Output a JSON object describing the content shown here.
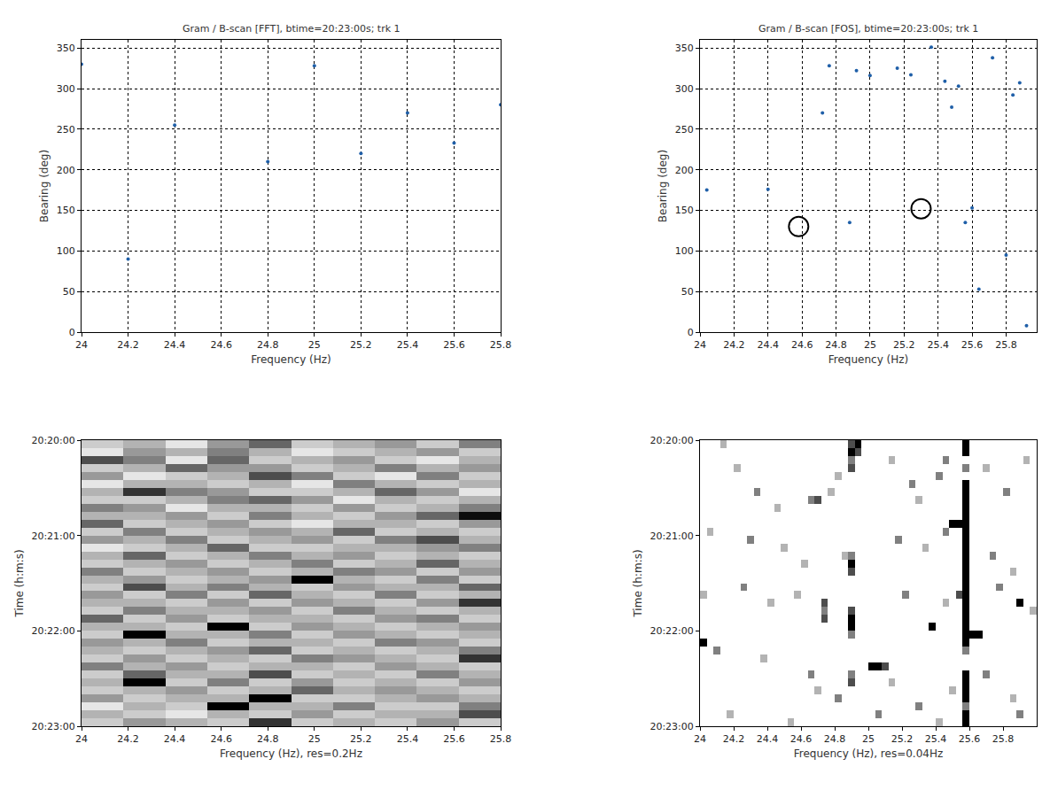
{
  "chart_data": [
    {
      "type": "scatter",
      "title": "Gram / B-scan [FFT], btime=20:23:00s; trk 1",
      "x_label": "Frequency (Hz)",
      "y_label": "Bearing (deg)",
      "xlim": [
        24,
        25.8
      ],
      "ylim": [
        0,
        360
      ],
      "xticks": [
        24,
        24.2,
        24.4,
        24.6,
        24.8,
        25,
        25.2,
        25.4,
        25.6,
        25.8
      ],
      "yticks": [
        0,
        50,
        100,
        150,
        200,
        250,
        300,
        350
      ],
      "grid": true,
      "series": [
        {
          "color": "#1f5fa8",
          "marker": "dot",
          "x": [
            24,
            24.2,
            24.4,
            24.8,
            25,
            25.2,
            25.4,
            25.6,
            25.8
          ],
          "values": [
            330,
            90,
            255,
            210,
            328,
            220,
            270,
            233,
            280
          ]
        }
      ]
    },
    {
      "type": "scatter",
      "title": "Gram / B-scan [FOS], btime=20:23:00s; trk 1",
      "x_label": "Frequency (Hz)",
      "y_label": "Bearing (deg)",
      "xlim": [
        24,
        25.98
      ],
      "ylim": [
        0,
        360
      ],
      "xticks": [
        24,
        24.2,
        24.4,
        24.6,
        24.8,
        25,
        25.2,
        25.4,
        25.6,
        25.8
      ],
      "yticks": [
        0,
        50,
        100,
        150,
        200,
        250,
        300,
        350
      ],
      "grid": true,
      "series": [
        {
          "color": "#1f5fa8",
          "marker": "dot",
          "x": [
            24.04,
            24.4,
            24.72,
            24.76,
            24.88,
            24.92,
            25,
            25.16,
            25.24,
            25.36,
            25.44,
            25.48,
            25.52,
            25.56,
            25.6,
            25.64,
            25.72,
            25.8,
            25.84,
            25.88,
            25.92
          ],
          "values": [
            175,
            176,
            270,
            328,
            135,
            322,
            316,
            325,
            317,
            351,
            309,
            277,
            303,
            135,
            153,
            53,
            338,
            95,
            292,
            307,
            8
          ]
        },
        {
          "color": "#000000",
          "marker": "circle-open",
          "x": [
            24.58,
            25.3
          ],
          "values": [
            130,
            152
          ]
        }
      ]
    },
    {
      "type": "heatmap",
      "x_label": "Frequency (Hz), res=0.2Hz",
      "y_label": "Time (h:m:s)",
      "xlim": [
        24,
        25.8
      ],
      "ylim": [
        180,
        0
      ],
      "xticks": [
        24,
        24.2,
        24.4,
        24.6,
        24.8,
        25,
        25.2,
        25.4,
        25.6,
        25.8
      ],
      "yticks": [
        {
          "value": 0,
          "label": "20:20:00"
        },
        {
          "value": 60,
          "label": "20:21:00"
        },
        {
          "value": 120,
          "label": "20:22:00"
        },
        {
          "value": 180,
          "label": "20:23:00"
        }
      ],
      "grid": false,
      "zlim": [
        0,
        1
      ],
      "x": [
        24.09,
        24.27,
        24.45,
        24.63,
        24.81,
        24.99,
        25.17,
        25.35,
        25.53,
        25.71
      ],
      "y": [
        2.5,
        7.5,
        12.5,
        17.5,
        22.5,
        27.5,
        32.5,
        37.5,
        42.5,
        47.5,
        52.5,
        57.5,
        62.5,
        67.5,
        72.5,
        77.5,
        82.5,
        87.5,
        92.5,
        97.5,
        102.5,
        107.5,
        112.5,
        117.5,
        122.5,
        127.5,
        132.5,
        137.5,
        142.5,
        147.5,
        152.5,
        157.5,
        162.5,
        167.5,
        172.5,
        177.5
      ],
      "z": [
        [
          0.2,
          0.3,
          0.1,
          0.4,
          0.6,
          0.2,
          0.3,
          0.4,
          0.2,
          0.5
        ],
        [
          0.1,
          0.4,
          0.3,
          0.5,
          0.3,
          0.1,
          0.2,
          0.3,
          0.4,
          0.2
        ],
        [
          0.7,
          0.5,
          0.1,
          0.6,
          0.2,
          0.3,
          0.4,
          0.2,
          0.1,
          0.3
        ],
        [
          0.2,
          0.3,
          0.6,
          0.4,
          0.4,
          0.2,
          0.3,
          0.5,
          0.3,
          0.4
        ],
        [
          0.4,
          0.1,
          0.2,
          0.3,
          0.7,
          0.5,
          0.2,
          0.1,
          0.5,
          0.2
        ],
        [
          0.1,
          0.3,
          0.3,
          0.2,
          0.3,
          0.1,
          0.5,
          0.3,
          0.2,
          0.3
        ],
        [
          0.3,
          0.8,
          0.5,
          0.4,
          0.2,
          0.2,
          0.3,
          0.6,
          0.4,
          0.1
        ],
        [
          0.2,
          0.2,
          0.3,
          0.5,
          0.6,
          0.4,
          0.1,
          0.3,
          0.2,
          0.3
        ],
        [
          0.5,
          0.4,
          0.1,
          0.3,
          0.3,
          0.2,
          0.4,
          0.2,
          0.3,
          0.5
        ],
        [
          0.3,
          0.3,
          0.4,
          0.2,
          0.5,
          0.3,
          0.2,
          0.4,
          0.6,
          0.95
        ],
        [
          0.6,
          0.2,
          0.3,
          0.4,
          0.2,
          0.1,
          0.3,
          0.3,
          0.2,
          0.4
        ],
        [
          0.2,
          0.5,
          0.2,
          0.3,
          0.4,
          0.3,
          0.6,
          0.2,
          0.3,
          0.2
        ],
        [
          0.4,
          0.3,
          0.5,
          0.2,
          0.3,
          0.4,
          0.2,
          0.5,
          0.7,
          0.3
        ],
        [
          0.1,
          0.2,
          0.3,
          0.6,
          0.2,
          0.2,
          0.3,
          0.3,
          0.4,
          0.5
        ],
        [
          0.3,
          0.6,
          0.2,
          0.3,
          0.5,
          0.3,
          0.4,
          0.2,
          0.3,
          0.2
        ],
        [
          0.2,
          0.3,
          0.4,
          0.2,
          0.3,
          0.5,
          0.2,
          0.3,
          0.6,
          0.3
        ],
        [
          0.5,
          0.2,
          0.3,
          0.4,
          0.2,
          0.3,
          0.5,
          0.4,
          0.2,
          0.4
        ],
        [
          0.3,
          0.4,
          0.2,
          0.3,
          0.4,
          1.0,
          0.3,
          0.2,
          0.5,
          0.2
        ],
        [
          0.2,
          0.7,
          0.3,
          0.5,
          0.3,
          0.2,
          0.4,
          0.3,
          0.3,
          0.6
        ],
        [
          0.4,
          0.2,
          0.5,
          0.2,
          0.6,
          0.3,
          0.2,
          0.5,
          0.2,
          0.3
        ],
        [
          0.3,
          0.3,
          0.2,
          0.4,
          0.2,
          0.4,
          0.3,
          0.2,
          0.4,
          0.8
        ],
        [
          0.2,
          0.5,
          0.3,
          0.3,
          0.4,
          0.2,
          0.5,
          0.3,
          0.2,
          0.3
        ],
        [
          0.6,
          0.2,
          0.4,
          0.2,
          0.3,
          0.3,
          0.2,
          0.4,
          0.5,
          0.2
        ],
        [
          0.3,
          0.3,
          0.2,
          1.0,
          0.2,
          0.4,
          0.3,
          0.2,
          0.3,
          0.4
        ],
        [
          0.2,
          1.0,
          0.3,
          0.3,
          0.5,
          0.2,
          0.4,
          0.3,
          0.2,
          0.3
        ],
        [
          0.4,
          0.3,
          0.5,
          0.2,
          0.3,
          0.3,
          0.2,
          0.5,
          0.4,
          0.2
        ],
        [
          0.3,
          0.2,
          0.3,
          0.4,
          0.6,
          0.2,
          0.3,
          0.2,
          0.3,
          0.5
        ],
        [
          0.2,
          0.4,
          0.2,
          0.3,
          0.2,
          0.5,
          0.4,
          0.3,
          0.2,
          0.8
        ],
        [
          0.5,
          0.3,
          0.4,
          0.2,
          0.3,
          0.3,
          0.2,
          0.4,
          0.3,
          0.2
        ],
        [
          0.2,
          0.6,
          0.3,
          0.3,
          0.7,
          0.2,
          0.3,
          0.2,
          0.5,
          0.3
        ],
        [
          0.3,
          1.0,
          0.2,
          0.5,
          0.2,
          0.4,
          0.2,
          0.3,
          0.2,
          0.4
        ],
        [
          0.2,
          0.3,
          0.4,
          0.2,
          0.3,
          0.6,
          0.3,
          0.4,
          0.3,
          0.2
        ],
        [
          0.4,
          0.2,
          0.3,
          0.3,
          1.0,
          0.2,
          0.2,
          0.3,
          0.4,
          0.3
        ],
        [
          0.1,
          0.3,
          0.2,
          1.0,
          0.3,
          0.3,
          0.5,
          0.2,
          0.2,
          0.5
        ],
        [
          0.3,
          0.2,
          0.1,
          0.3,
          0.2,
          0.4,
          0.2,
          0.3,
          0.3,
          0.7
        ],
        [
          0.2,
          0.4,
          0.3,
          0.2,
          0.8,
          0.2,
          0.3,
          0.2,
          0.4,
          0.2
        ]
      ]
    },
    {
      "type": "heatmap",
      "x_label": "Frequency (Hz), res=0.04Hz",
      "y_label": "Time (h:m:s)",
      "xlim": [
        24,
        26
      ],
      "ylim": [
        180,
        0
      ],
      "xticks": [
        24,
        24.2,
        24.4,
        24.6,
        24.8,
        25,
        25.2,
        25.4,
        25.6,
        25.8
      ],
      "yticks": [
        {
          "value": 0,
          "label": "20:20:00"
        },
        {
          "value": 60,
          "label": "20:21:00"
        },
        {
          "value": 120,
          "label": "20:22:00"
        },
        {
          "value": 180,
          "label": "20:23:00"
        }
      ],
      "grid": false,
      "zlim": [
        0,
        1
      ],
      "x": [
        24.02,
        24.06,
        24.1,
        24.14,
        24.18,
        24.22,
        24.26,
        24.3,
        24.34,
        24.38,
        24.42,
        24.46,
        24.5,
        24.54,
        24.58,
        24.62,
        24.66,
        24.7,
        24.74,
        24.78,
        24.82,
        24.86,
        24.9,
        24.94,
        24.98,
        25.02,
        25.06,
        25.1,
        25.14,
        25.18,
        25.22,
        25.26,
        25.3,
        25.34,
        25.38,
        25.42,
        25.46,
        25.5,
        25.54,
        25.58,
        25.62,
        25.66,
        25.7,
        25.74,
        25.78,
        25.82,
        25.86,
        25.9,
        25.94,
        25.98
      ],
      "y": [
        2.5,
        7.5,
        12.5,
        17.5,
        22.5,
        27.5,
        32.5,
        37.5,
        42.5,
        47.5,
        52.5,
        57.5,
        62.5,
        67.5,
        72.5,
        77.5,
        82.5,
        87.5,
        92.5,
        97.5,
        102.5,
        107.5,
        112.5,
        117.5,
        122.5,
        127.5,
        132.5,
        137.5,
        142.5,
        147.5,
        152.5,
        157.5,
        162.5,
        167.5,
        172.5,
        177.5
      ],
      "cells": [
        [
          25.58,
          2.5,
          1
        ],
        [
          25.58,
          7.5,
          1
        ],
        [
          25.58,
          17.5,
          0.5
        ],
        [
          25.58,
          27.5,
          1
        ],
        [
          25.58,
          32.5,
          1
        ],
        [
          25.58,
          37.5,
          1
        ],
        [
          25.58,
          42.5,
          1
        ],
        [
          25.58,
          47.5,
          1
        ],
        [
          25.58,
          52.5,
          1
        ],
        [
          25.58,
          57.5,
          1
        ],
        [
          25.58,
          62.5,
          1
        ],
        [
          25.58,
          67.5,
          1
        ],
        [
          25.58,
          72.5,
          1
        ],
        [
          25.58,
          77.5,
          1
        ],
        [
          25.58,
          82.5,
          1
        ],
        [
          25.58,
          87.5,
          1
        ],
        [
          25.58,
          92.5,
          1
        ],
        [
          25.58,
          97.5,
          1
        ],
        [
          25.58,
          102.5,
          1
        ],
        [
          25.58,
          107.5,
          1
        ],
        [
          25.58,
          112.5,
          1
        ],
        [
          25.58,
          117.5,
          1
        ],
        [
          25.58,
          122.5,
          1
        ],
        [
          25.58,
          127.5,
          1
        ],
        [
          25.58,
          132.5,
          0.5
        ],
        [
          25.58,
          147.5,
          1
        ],
        [
          25.58,
          152.5,
          1
        ],
        [
          25.58,
          157.5,
          1
        ],
        [
          25.58,
          162.5,
          1
        ],
        [
          25.58,
          167.5,
          0.5
        ],
        [
          25.58,
          172.5,
          1
        ],
        [
          25.58,
          177.5,
          1
        ],
        [
          25.54,
          52.5,
          1
        ],
        [
          25.5,
          52.5,
          1
        ],
        [
          25.46,
          57.5,
          0.5
        ],
        [
          25.62,
          122.5,
          1
        ],
        [
          25.66,
          122.5,
          1
        ],
        [
          25.54,
          97.5,
          0.7
        ],
        [
          25.46,
          12.5,
          0.5
        ],
        [
          24.9,
          2.5,
          0.7
        ],
        [
          24.9,
          7.5,
          1
        ],
        [
          24.9,
          12.5,
          0.5
        ],
        [
          24.9,
          17.5,
          0.7
        ],
        [
          24.9,
          72.5,
          0.5
        ],
        [
          24.9,
          77.5,
          1
        ],
        [
          24.9,
          82.5,
          0.7
        ],
        [
          24.9,
          107.5,
          0.7
        ],
        [
          24.9,
          112.5,
          1
        ],
        [
          24.9,
          117.5,
          1
        ],
        [
          24.9,
          122.5,
          0.5
        ],
        [
          24.9,
          147.5,
          0.5
        ],
        [
          24.9,
          152.5,
          0.7
        ],
        [
          24.94,
          2.5,
          1
        ],
        [
          24.94,
          7.5,
          0.7
        ],
        [
          24.74,
          102.5,
          0.7
        ],
        [
          24.74,
          107.5,
          0.5
        ],
        [
          24.74,
          112.5,
          0.7
        ],
        [
          25.02,
          142.5,
          1
        ],
        [
          25.06,
          142.5,
          1
        ],
        [
          25.1,
          142.5,
          0.7
        ],
        [
          25.38,
          117.5,
          1
        ],
        [
          25.9,
          102.5,
          1
        ],
        [
          24.02,
          127.5,
          1
        ],
        [
          24.14,
          2.5,
          0.3
        ],
        [
          24.22,
          17.5,
          0.3
        ],
        [
          24.34,
          32.5,
          0.5
        ],
        [
          24.46,
          42.5,
          0.3
        ],
        [
          24.66,
          37.5,
          0.5
        ],
        [
          24.7,
          37.5,
          0.7
        ],
        [
          24.78,
          32.5,
          0.3
        ],
        [
          24.82,
          22.5,
          0.3
        ],
        [
          25.14,
          12.5,
          0.3
        ],
        [
          25.26,
          27.5,
          0.5
        ],
        [
          25.3,
          37.5,
          0.3
        ],
        [
          25.42,
          22.5,
          0.5
        ],
        [
          25.7,
          17.5,
          0.3
        ],
        [
          25.82,
          32.5,
          0.5
        ],
        [
          25.94,
          12.5,
          0.3
        ],
        [
          24.06,
          57.5,
          0.3
        ],
        [
          24.3,
          62.5,
          0.5
        ],
        [
          24.5,
          67.5,
          0.3
        ],
        [
          24.62,
          77.5,
          0.3
        ],
        [
          24.86,
          72.5,
          0.3
        ],
        [
          25.18,
          62.5,
          0.5
        ],
        [
          25.34,
          67.5,
          0.3
        ],
        [
          25.74,
          72.5,
          0.5
        ],
        [
          25.86,
          82.5,
          0.3
        ],
        [
          24.02,
          97.5,
          0.3
        ],
        [
          24.26,
          92.5,
          0.5
        ],
        [
          24.42,
          102.5,
          0.3
        ],
        [
          24.58,
          97.5,
          0.3
        ],
        [
          25.22,
          97.5,
          0.5
        ],
        [
          25.46,
          102.5,
          0.3
        ],
        [
          25.78,
          92.5,
          0.5
        ],
        [
          25.98,
          107.5,
          0.3
        ],
        [
          24.1,
          132.5,
          0.5
        ],
        [
          24.38,
          137.5,
          0.3
        ],
        [
          24.66,
          147.5,
          0.5
        ],
        [
          24.7,
          157.5,
          0.3
        ],
        [
          24.82,
          162.5,
          0.5
        ],
        [
          25.14,
          152.5,
          0.3
        ],
        [
          25.3,
          167.5,
          0.5
        ],
        [
          25.5,
          157.5,
          0.3
        ],
        [
          25.7,
          147.5,
          0.5
        ],
        [
          25.86,
          162.5,
          0.3
        ],
        [
          24.18,
          172.5,
          0.3
        ],
        [
          24.54,
          177.5,
          0.3
        ],
        [
          25.06,
          172.5,
          0.5
        ],
        [
          25.42,
          177.5,
          0.3
        ],
        [
          25.9,
          172.5,
          0.5
        ]
      ]
    }
  ]
}
